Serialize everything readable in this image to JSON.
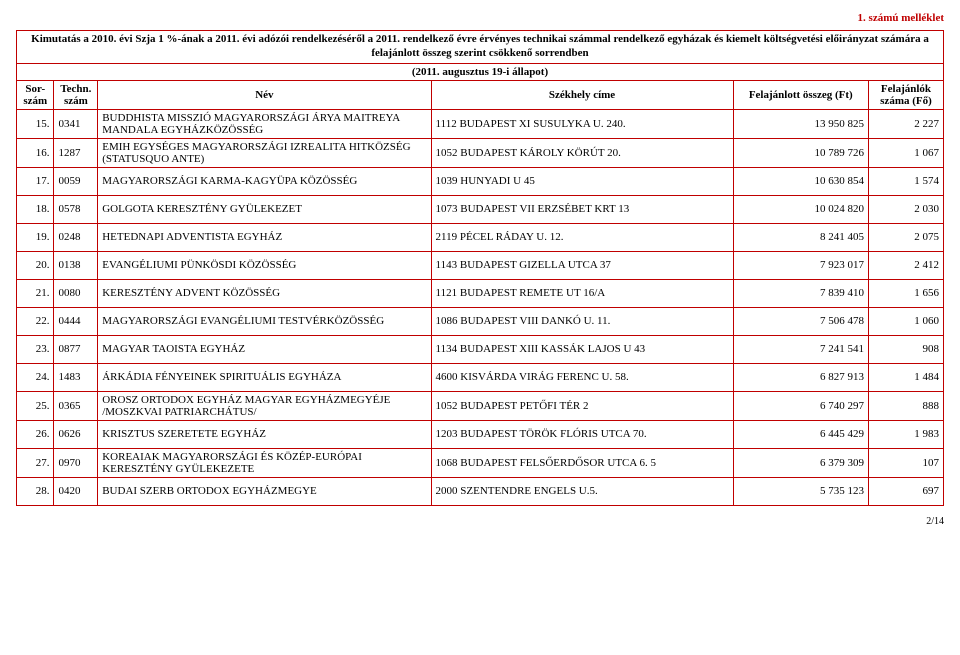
{
  "annex": "1. számú melléklet",
  "title": "Kimutatás a 2010. évi Szja 1 %-ának a 2011. évi adózói rendelkezéséről a 2011. rendelkező évre érvényes technikai számmal rendelkező egyházak és kiemelt költségvetési előirányzat számára a felajánlott összeg szerint csökkenő sorrendben",
  "subtitle": "(2011. augusztus 19-i állapot)",
  "headers": {
    "sor": "Sor-szám",
    "tech": "Techn. szám",
    "nev": "Név",
    "cim": "Székhely címe",
    "ft": "Felajánlott összeg (Ft)",
    "fo": "Felajánlók száma (Fő)"
  },
  "rows": [
    {
      "sor": "15.",
      "tech": "0341",
      "nev": "BUDDHISTA MISSZIÓ MAGYARORSZÁGI ÁRYA MAITREYA MANDALA EGYHÁZKÖZÖSSÉG",
      "cim": "1112 BUDAPEST XI SUSULYKA U. 240.",
      "ft": "13 950 825",
      "fo": "2 227"
    },
    {
      "sor": "16.",
      "tech": "1287",
      "nev": "EMIH EGYSÉGES MAGYARORSZÁGI IZREALITA HITKÖZSÉG (STATUSQUO ANTE)",
      "cim": "1052 BUDAPEST KÁROLY KÖRÚT 20.",
      "ft": "10 789 726",
      "fo": "1 067"
    },
    {
      "sor": "17.",
      "tech": "0059",
      "nev": "MAGYARORSZÁGI KARMA-KAGYÜPA KÖZÖSSÉG",
      "cim": "1039 HUNYADI U 45",
      "ft": "10 630 854",
      "fo": "1 574"
    },
    {
      "sor": "18.",
      "tech": "0578",
      "nev": "GOLGOTA KERESZTÉNY GYÜLEKEZET",
      "cim": "1073 BUDAPEST VII ERZSÉBET KRT 13",
      "ft": "10 024 820",
      "fo": "2 030"
    },
    {
      "sor": "19.",
      "tech": "0248",
      "nev": "HETEDNAPI ADVENTISTA EGYHÁZ",
      "cim": "2119 PÉCEL RÁDAY U. 12.",
      "ft": "8 241 405",
      "fo": "2 075"
    },
    {
      "sor": "20.",
      "tech": "0138",
      "nev": "EVANGÉLIUMI PÜNKÖSDI KÖZÖSSÉG",
      "cim": "1143 BUDAPEST GIZELLA UTCA 37",
      "ft": "7 923 017",
      "fo": "2 412"
    },
    {
      "sor": "21.",
      "tech": "0080",
      "nev": "KERESZTÉNY ADVENT KÖZÖSSÉG",
      "cim": "1121 BUDAPEST REMETE UT 16/A",
      "ft": "7 839 410",
      "fo": "1 656"
    },
    {
      "sor": "22.",
      "tech": "0444",
      "nev": "MAGYARORSZÁGI EVANGÉLIUMI TESTVÉRKÖZÖSSÉG",
      "cim": "1086 BUDAPEST VIII DANKÓ U. 11.",
      "ft": "7 506 478",
      "fo": "1 060"
    },
    {
      "sor": "23.",
      "tech": "0877",
      "nev": "MAGYAR TAOISTA EGYHÁZ",
      "cim": "1134 BUDAPEST XIII KASSÁK LAJOS U 43",
      "ft": "7 241 541",
      "fo": "908"
    },
    {
      "sor": "24.",
      "tech": "1483",
      "nev": "ÁRKÁDIA FÉNYEINEK SPIRITUÁLIS EGYHÁZA",
      "cim": "4600 KISVÁRDA VIRÁG FERENC U. 58.",
      "ft": "6 827 913",
      "fo": "1 484"
    },
    {
      "sor": "25.",
      "tech": "0365",
      "nev": "OROSZ ORTODOX EGYHÁZ MAGYAR EGYHÁZMEGYÉJE /MOSZKVAI PATRIARCHÁTUS/",
      "cim": "1052 BUDAPEST PETŐFI TÉR 2",
      "ft": "6 740 297",
      "fo": "888"
    },
    {
      "sor": "26.",
      "tech": "0626",
      "nev": "KRISZTUS SZERETETE EGYHÁZ",
      "cim": "1203 BUDAPEST TÖRÖK FLÓRIS UTCA 70.",
      "ft": "6 445 429",
      "fo": "1 983"
    },
    {
      "sor": "27.",
      "tech": "0970",
      "nev": "KOREAIAK MAGYARORSZÁGI ÉS KÖZÉP-EURÓPAI KERESZTÉNY GYÜLEKEZETE",
      "cim": "1068 BUDAPEST FELSŐERDŐSOR UTCA 6. 5",
      "ft": "6 379 309",
      "fo": "107"
    },
    {
      "sor": "28.",
      "tech": "0420",
      "nev": "BUDAI SZERB ORTODOX EGYHÁZMEGYE",
      "cim": "2000 SZENTENDRE ENGELS U.5.",
      "ft": "5 735 123",
      "fo": "697"
    }
  ],
  "pager": "2/14"
}
